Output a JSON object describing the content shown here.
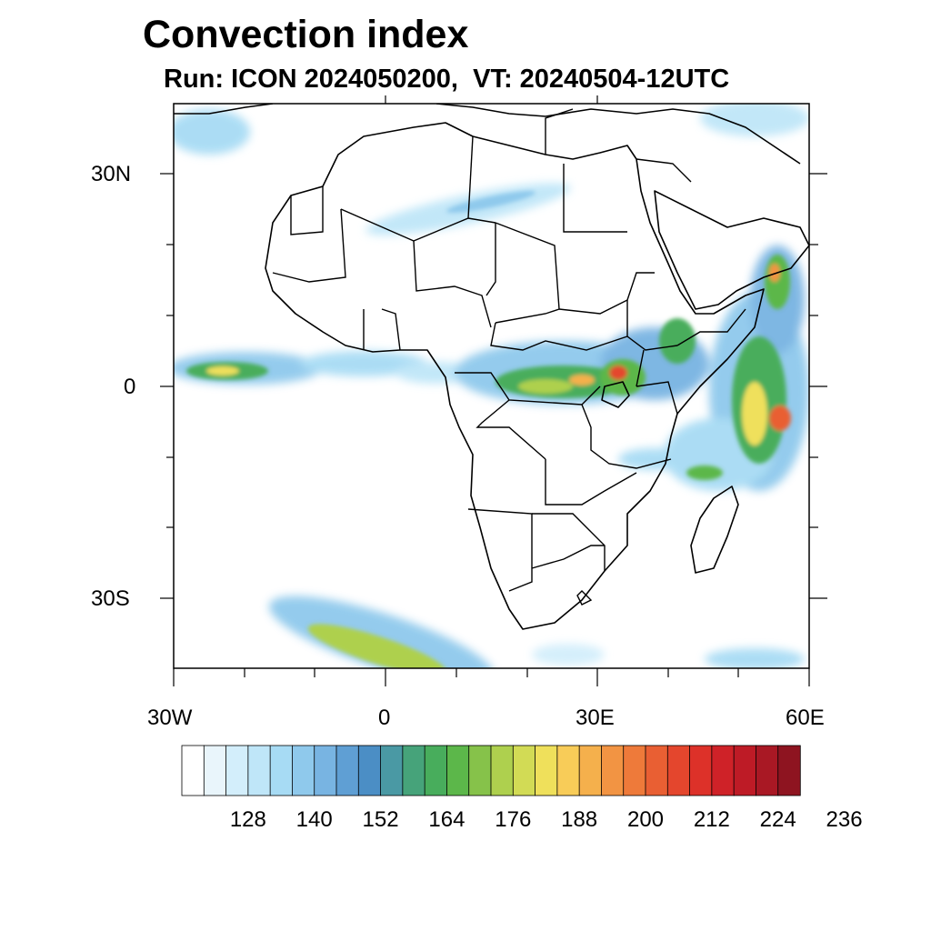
{
  "title": "Convection index",
  "subtitle": "Run: ICON 2024050200,  VT: 20240504-12UTC",
  "axes": {
    "lat_labels": [
      "30N",
      "0",
      "30S"
    ],
    "lon_labels": [
      "30W",
      "0",
      "30E",
      "60E"
    ],
    "lat_range": [
      -40,
      40
    ],
    "lon_range": [
      -30,
      60
    ]
  },
  "colorbar": {
    "tick_labels": [
      "128",
      "140",
      "152",
      "164",
      "176",
      "188",
      "200",
      "212",
      "224",
      "236"
    ],
    "colors": [
      "#ffffff",
      "#e9f5fb",
      "#d3eefb",
      "#bfe6f8",
      "#a7dbf4",
      "#8fc9ec",
      "#78b4e2",
      "#5f9fd4",
      "#4b8ec5",
      "#4a99a4",
      "#46a37a",
      "#48ad5c",
      "#5cb74a",
      "#86c24a",
      "#aed04e",
      "#d2db55",
      "#efe05b",
      "#f8cc58",
      "#f5b04c",
      "#f29443",
      "#ee7a3a",
      "#e95f33",
      "#e4462d",
      "#dd3129",
      "#cf2228",
      "#be1b26",
      "#a91824",
      "#8e1420"
    ]
  }
}
